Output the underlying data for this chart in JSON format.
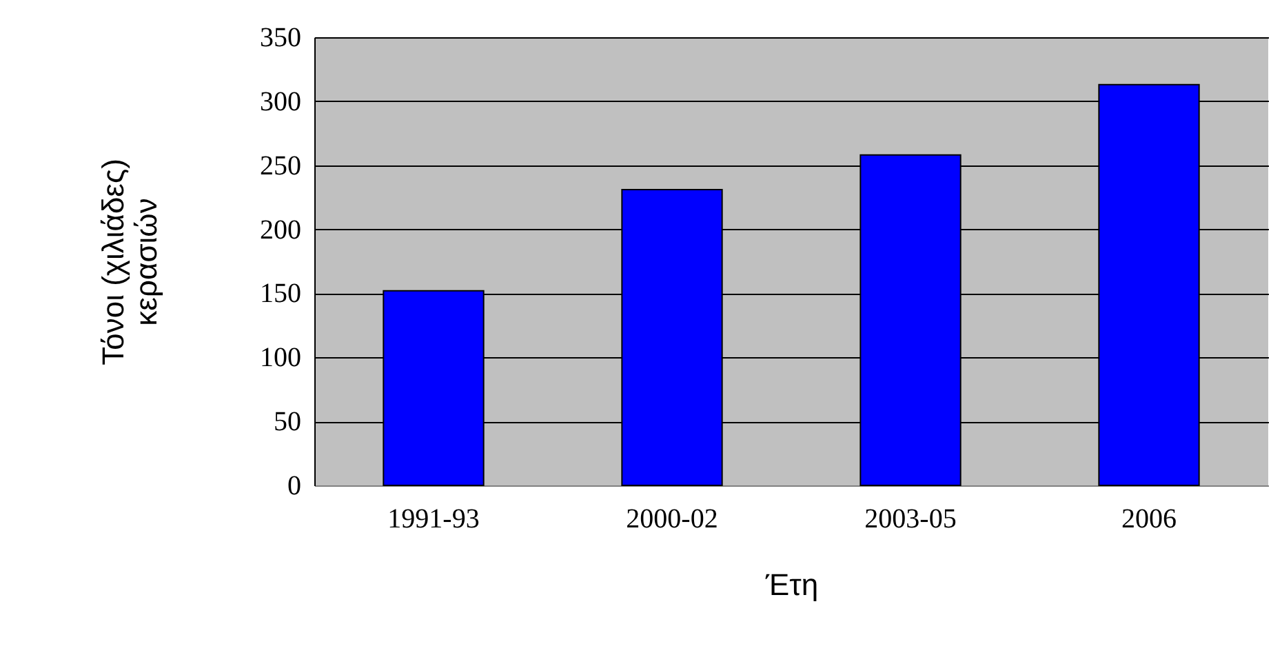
{
  "chart_data": {
    "type": "bar",
    "categories": [
      "1991-93",
      "2000-02",
      "2003-05",
      "2006"
    ],
    "values": [
      152,
      231,
      258,
      313
    ],
    "color": "#0000ff",
    "xlabel": "Έτη",
    "ylabel": "Τόνοι (χιλιάδες)\nκερασιών",
    "ylim": [
      0,
      350
    ],
    "yticks": [
      0,
      50,
      100,
      150,
      200,
      250,
      300,
      350
    ],
    "grid": "y"
  }
}
